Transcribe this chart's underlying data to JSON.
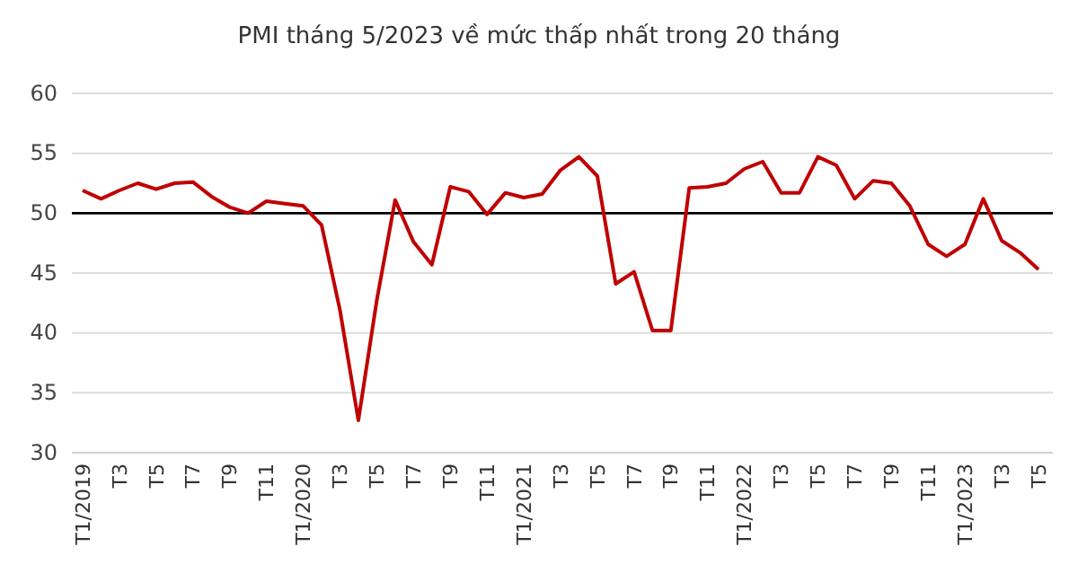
{
  "chart_data": {
    "type": "line",
    "title": "PMI tháng 5/2023 về mức thấp nhất trong 20 tháng",
    "categories": [
      "T1/2019",
      null,
      "T3",
      null,
      "T5",
      null,
      "T7",
      null,
      "T9",
      null,
      "T11",
      null,
      "T1/2020",
      null,
      "T3",
      null,
      "T5",
      null,
      "T7",
      null,
      "T9",
      null,
      "T11",
      null,
      "T1/2021",
      null,
      "T3",
      null,
      "T5",
      null,
      "T7",
      null,
      "T9",
      null,
      "T11",
      null,
      "T1/2022",
      null,
      "T3",
      null,
      "T5",
      null,
      "T7",
      null,
      "T9",
      null,
      "T11",
      null,
      "T1/2023",
      null,
      "T3",
      null,
      "T5"
    ],
    "series": [
      {
        "color": "#c00000",
        "values": [
          51.9,
          51.2,
          51.9,
          52.5,
          52.0,
          52.5,
          52.6,
          51.4,
          50.5,
          50.0,
          51.0,
          50.8,
          50.6,
          49.0,
          41.9,
          32.7,
          42.7,
          51.1,
          47.6,
          45.7,
          52.2,
          51.8,
          49.9,
          51.7,
          51.3,
          51.6,
          53.6,
          54.7,
          53.1,
          44.1,
          45.1,
          40.2,
          40.2,
          52.1,
          52.2,
          52.5,
          53.7,
          54.3,
          51.7,
          51.7,
          54.7,
          54.0,
          51.2,
          52.7,
          52.5,
          50.6,
          47.4,
          46.4,
          47.4,
          51.2,
          47.7,
          46.7,
          45.3
        ]
      }
    ],
    "ylim": [
      30,
      60
    ],
    "yticks": [
      30,
      35,
      40,
      45,
      50,
      55,
      60
    ],
    "grid": "y",
    "marker": "none",
    "line_style": "solid",
    "ref_lines": [
      {
        "axis": "y",
        "value": 50,
        "color": "#000000"
      }
    ]
  }
}
